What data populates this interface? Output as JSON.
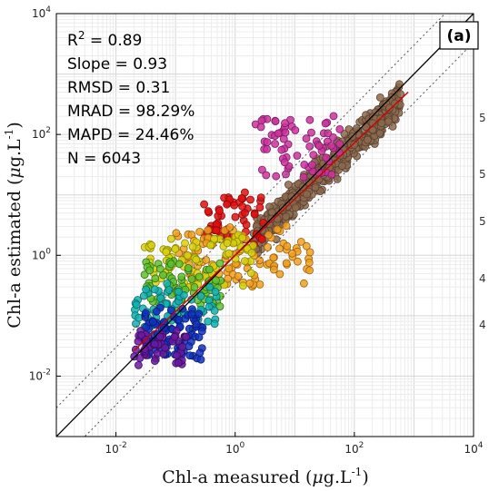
{
  "chart_data": {
    "type": "scatter",
    "panel_label": "(a)",
    "xlabel": {
      "main": "Chl-a measured (",
      "mu": "μ",
      "unit": "g.L",
      "exp": "-1",
      "close": ")"
    },
    "ylabel": {
      "main": "Chl-a estimated (",
      "mu": "μ",
      "unit": "g.L",
      "exp": "-1",
      "close": ")"
    },
    "x_scale": "log",
    "y_scale": "log",
    "xlim": [
      0.001,
      10000
    ],
    "ylim": [
      0.001,
      10000
    ],
    "grid": true,
    "x_ticks": [
      {
        "base": "10",
        "exp": "-2",
        "value": 0.01
      },
      {
        "base": "10",
        "exp": "0",
        "value": 1
      },
      {
        "base": "10",
        "exp": "2",
        "value": 100
      },
      {
        "base": "10",
        "exp": "4",
        "value": 10000
      }
    ],
    "y_ticks": [
      {
        "base": "10",
        "exp": "-2",
        "value": 0.01
      },
      {
        "base": "10",
        "exp": "0",
        "value": 1
      },
      {
        "base": "10",
        "exp": "2",
        "value": 100
      },
      {
        "base": "10",
        "exp": "4",
        "value": 10000
      }
    ],
    "stats": [
      {
        "label": "R",
        "sup": "2",
        "rest": " = 0.89"
      },
      {
        "label": "Slope = 0.93",
        "sup": "",
        "rest": ""
      },
      {
        "label": "RMSD = 0.31",
        "sup": "",
        "rest": ""
      },
      {
        "label": "MRAD = 98.29%",
        "sup": "",
        "rest": ""
      },
      {
        "label": "MAPD = 24.46%",
        "sup": "",
        "rest": ""
      },
      {
        "label": "N = 6043",
        "sup": "",
        "rest": ""
      }
    ],
    "reference_lines": {
      "one_to_one": {
        "color": "#000000",
        "style": "solid"
      },
      "factor_bounds": {
        "color": "#555555",
        "style": "dotted",
        "factor": 3
      },
      "fit": {
        "color": "#cc0000",
        "slope": 0.93
      }
    },
    "clusters": [
      {
        "color": "#8b6a4e",
        "stroke": "#5a4030",
        "x": [
          [
            2,
            600
          ]
        ],
        "y_slope": 0.93,
        "y_spread": 0.55,
        "count": 520
      },
      {
        "color": "#cc3399",
        "stroke": "#7a1b6a",
        "x": [
          [
            2,
            60
          ]
        ],
        "y": [
          [
            20,
            200
          ]
        ],
        "count": 70
      },
      {
        "color": "#e01010",
        "stroke": "#8a0a0a",
        "x": [
          [
            0.3,
            3
          ]
        ],
        "y": [
          [
            1.5,
            10
          ]
        ],
        "count": 60
      },
      {
        "color": "#f0a020",
        "stroke": "#9a6010",
        "x": [
          [
            0.1,
            20
          ]
        ],
        "y": [
          [
            0.3,
            3
          ]
        ],
        "count": 110
      },
      {
        "color": "#d8d010",
        "stroke": "#8a8a00",
        "x": [
          [
            0.03,
            2
          ]
        ],
        "y": [
          [
            0.3,
            2
          ]
        ],
        "count": 80
      },
      {
        "color": "#60c030",
        "stroke": "#307010",
        "x": [
          [
            0.03,
            0.6
          ]
        ],
        "y": [
          [
            0.15,
            0.8
          ]
        ],
        "count": 70
      },
      {
        "color": "#10b0b0",
        "stroke": "#0a6a6a",
        "x": [
          [
            0.02,
            0.5
          ]
        ],
        "y": [
          [
            0.06,
            0.3
          ]
        ],
        "count": 70
      },
      {
        "color": "#1030c0",
        "stroke": "#0a1a70",
        "x": [
          [
            0.03,
            0.3
          ]
        ],
        "y": [
          [
            0.02,
            0.12
          ]
        ],
        "count": 90
      },
      {
        "color": "#6a1aa0",
        "stroke": "#3a0a60",
        "x": [
          [
            0.02,
            0.15
          ]
        ],
        "y": [
          [
            0.015,
            0.06
          ]
        ],
        "count": 50
      }
    ],
    "right_edge_labels": [
      "5",
      "5",
      "5",
      "4",
      "4"
    ]
  }
}
